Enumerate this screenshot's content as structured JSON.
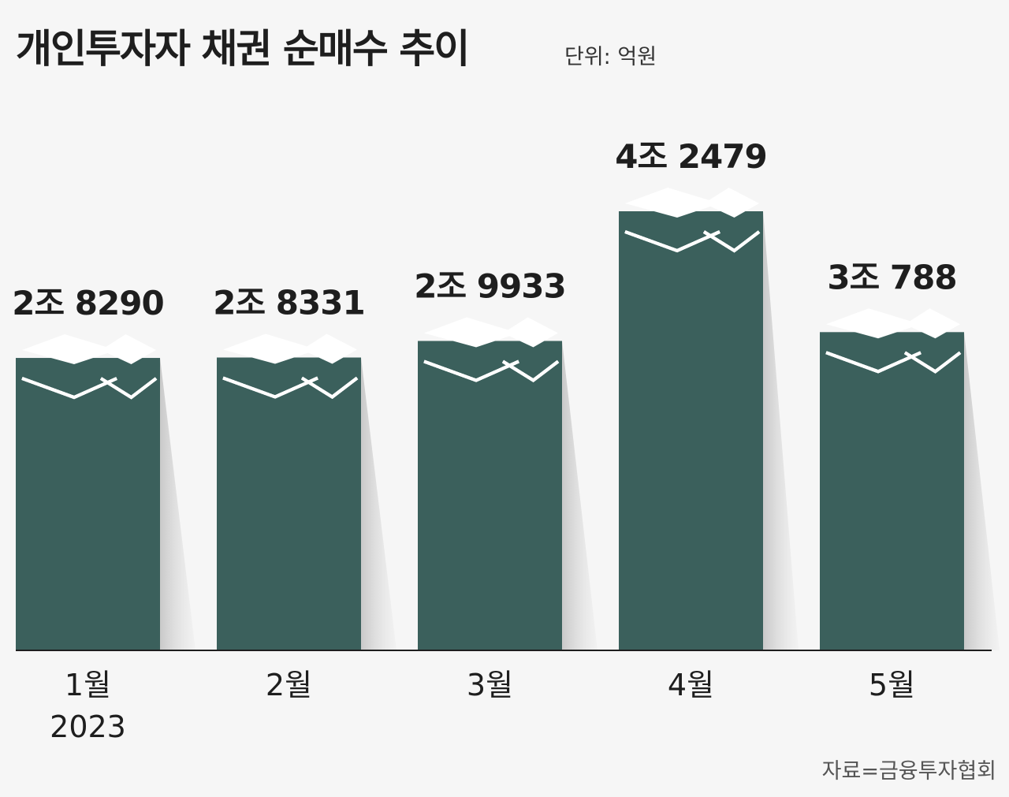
{
  "header": {
    "title": "개인투자자 채권 순매수 추이",
    "unit": "단위: 억원"
  },
  "footer": {
    "source": "자료=금융투자협회"
  },
  "colors": {
    "bar": "#3b605c",
    "note": "#ffffff",
    "baseline": "#1e1e1e",
    "background": "#f6f6f6"
  },
  "chart_data": {
    "type": "bar",
    "categories": [
      "1월",
      "2월",
      "3월",
      "4월",
      "5월"
    ],
    "category_sublabels": [
      "2023",
      "",
      "",
      "",
      ""
    ],
    "values": [
      28290,
      28331,
      29933,
      42479,
      30788
    ],
    "data_labels": [
      "2조 8290",
      "2조 8331",
      "2조 9933",
      "4조 2479",
      "3조 788"
    ],
    "grid": false,
    "legend": "none"
  }
}
